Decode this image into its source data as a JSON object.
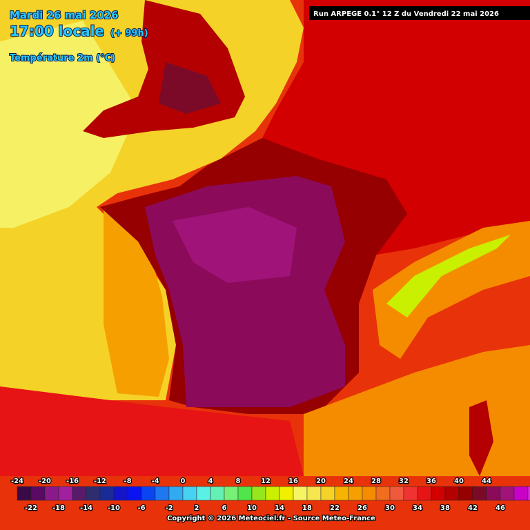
{
  "header": {
    "date": "Mardi 26 mai 2026",
    "time": "17:00 locale",
    "lead": "(+ 99h)",
    "field": "Température 2m (°C)",
    "run": "Run ARPEGE 0.1° 12 Z du Vendredi 22 mai 2026"
  },
  "legend": {
    "top_labels": [
      -24,
      -20,
      -16,
      -12,
      -8,
      -4,
      0,
      4,
      8,
      12,
      16,
      20,
      24,
      28,
      32,
      36,
      40,
      44
    ],
    "bottom_labels": [
      -22,
      -18,
      -14,
      -10,
      -6,
      -2,
      2,
      6,
      10,
      14,
      18,
      22,
      26,
      30,
      34,
      38,
      42,
      46
    ],
    "colors": [
      "#3a0a46",
      "#5a0a64",
      "#8a1a8c",
      "#a020a0",
      "#5a1a6a",
      "#2e2e6e",
      "#1a2a96",
      "#1414c8",
      "#0a14f0",
      "#0a46f0",
      "#1e78f0",
      "#32aaf0",
      "#46d2f0",
      "#5af0e6",
      "#64f0b4",
      "#78f078",
      "#50e64b",
      "#96e61e",
      "#c8f000",
      "#f0f000",
      "#f5f564",
      "#f5e650",
      "#f5d228",
      "#f5b400",
      "#f5a000",
      "#f58c00",
      "#f06e1e",
      "#f05a3c",
      "#f03232",
      "#e61414",
      "#d20000",
      "#b40000",
      "#960000",
      "#7a0a28",
      "#8c0a5a",
      "#a0147a",
      "#c800c8",
      "#e628e6",
      "#f064f0",
      "#f0a0f0"
    ]
  },
  "footer": {
    "copyright": "Copyright © 2026 Meteociel.fr - Source Meteo-France"
  }
}
